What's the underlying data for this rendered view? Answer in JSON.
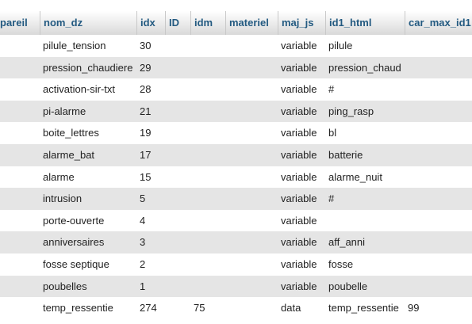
{
  "table": {
    "columns": [
      "pareil",
      "nom_dz",
      "idx",
      "ID",
      "idm",
      "materiel",
      "maj_js",
      "id1_html",
      "car_max_id1"
    ],
    "rows": [
      {
        "nom_dz": "pilule_tension",
        "idx": "30",
        "ID": "",
        "idm": "",
        "materiel": "",
        "maj_js": "variable",
        "id1_html": "pilule",
        "car_max_id1": ""
      },
      {
        "nom_dz": "pression_chaudiere",
        "idx": "29",
        "ID": "",
        "idm": "",
        "materiel": "",
        "maj_js": "variable",
        "id1_html": "pression_chaud",
        "car_max_id1": ""
      },
      {
        "nom_dz": "activation-sir-txt",
        "idx": "28",
        "ID": "",
        "idm": "",
        "materiel": "",
        "maj_js": "variable",
        "id1_html": "#",
        "car_max_id1": ""
      },
      {
        "nom_dz": "pi-alarme",
        "idx": "21",
        "ID": "",
        "idm": "",
        "materiel": "",
        "maj_js": "variable",
        "id1_html": "ping_rasp",
        "car_max_id1": ""
      },
      {
        "nom_dz": "boite_lettres",
        "idx": "19",
        "ID": "",
        "idm": "",
        "materiel": "",
        "maj_js": "variable",
        "id1_html": "bl",
        "car_max_id1": ""
      },
      {
        "nom_dz": "alarme_bat",
        "idx": "17",
        "ID": "",
        "idm": "",
        "materiel": "",
        "maj_js": "variable",
        "id1_html": "batterie",
        "car_max_id1": ""
      },
      {
        "nom_dz": "alarme",
        "idx": "15",
        "ID": "",
        "idm": "",
        "materiel": "",
        "maj_js": "variable",
        "id1_html": "alarme_nuit",
        "car_max_id1": ""
      },
      {
        "nom_dz": "intrusion",
        "idx": "5",
        "ID": "",
        "idm": "",
        "materiel": "",
        "maj_js": "variable",
        "id1_html": "#",
        "car_max_id1": ""
      },
      {
        "nom_dz": "porte-ouverte",
        "idx": "4",
        "ID": "",
        "idm": "",
        "materiel": "",
        "maj_js": "variable",
        "id1_html": "",
        "car_max_id1": ""
      },
      {
        "nom_dz": "anniversaires",
        "idx": "3",
        "ID": "",
        "idm": "",
        "materiel": "",
        "maj_js": "variable",
        "id1_html": "aff_anni",
        "car_max_id1": ""
      },
      {
        "nom_dz": "fosse septique",
        "idx": "2",
        "ID": "",
        "idm": "",
        "materiel": "",
        "maj_js": "variable",
        "id1_html": "fosse",
        "car_max_id1": ""
      },
      {
        "nom_dz": "poubelles",
        "idx": "1",
        "ID": "",
        "idm": "",
        "materiel": "",
        "maj_js": "variable",
        "id1_html": "poubelle",
        "car_max_id1": ""
      },
      {
        "nom_dz": " temp_ressentie",
        "idx": "274",
        "ID": "",
        "idm": "75",
        "materiel": "",
        "maj_js": "data",
        "id1_html": "temp_ressentie",
        "car_max_id1": "99"
      }
    ]
  }
}
